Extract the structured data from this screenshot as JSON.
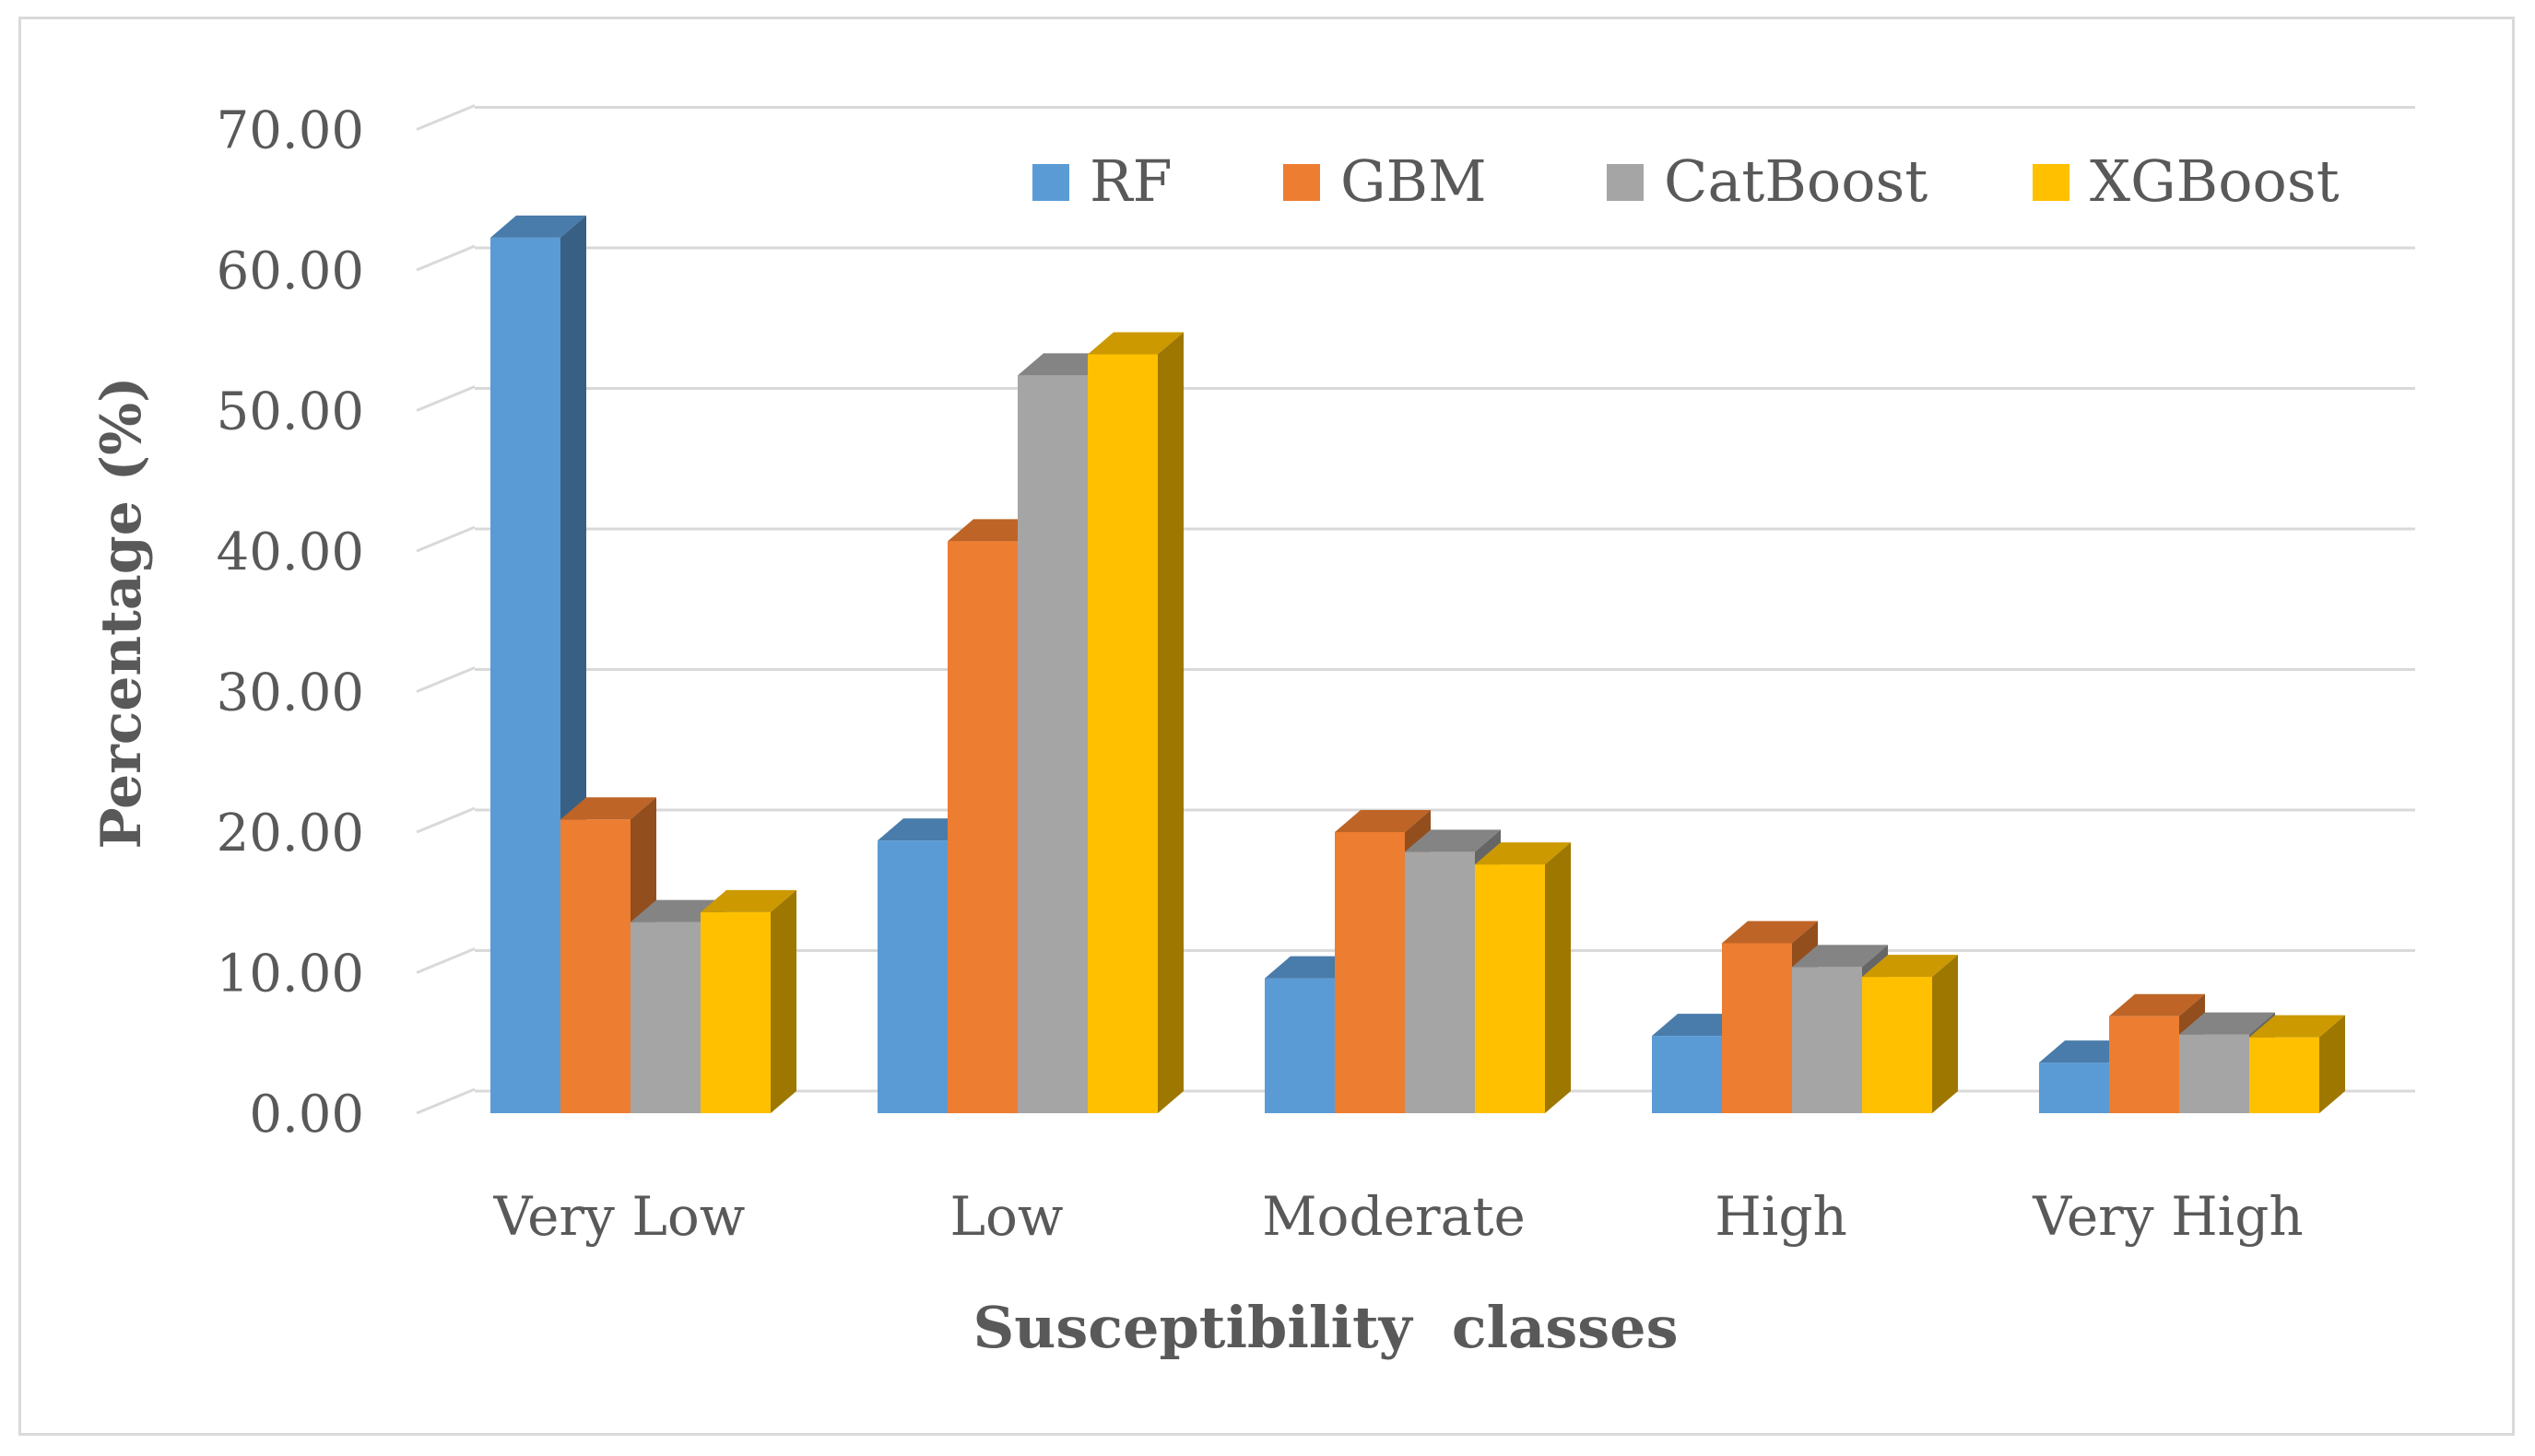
{
  "chart_data": {
    "type": "bar",
    "style": "3d-clustered-column",
    "title": "",
    "xlabel": "Susceptibility  classes",
    "ylabel": "Percentage (%)",
    "ylim": [
      0,
      70
    ],
    "yticks": [
      "0.00",
      "10.00",
      "20.00",
      "30.00",
      "40.00",
      "50.00",
      "60.00",
      "70.00"
    ],
    "grid": true,
    "legend_position": "top-right",
    "categories": [
      "Very Low",
      "Low",
      "Moderate",
      "High",
      "Very High"
    ],
    "series": [
      {
        "name": "RF",
        "color": "#5b9bd5",
        "values": [
          62.3,
          19.4,
          9.6,
          5.5,
          3.6
        ]
      },
      {
        "name": "GBM",
        "color": "#ed7d31",
        "values": [
          20.9,
          40.7,
          20.0,
          12.1,
          6.9
        ]
      },
      {
        "name": "CatBoost",
        "color": "#a5a5a5",
        "values": [
          13.6,
          52.5,
          18.6,
          10.4,
          5.6
        ]
      },
      {
        "name": "XGBoost",
        "color": "#ffc000",
        "values": [
          14.3,
          54.0,
          17.7,
          9.7,
          5.4
        ]
      }
    ]
  }
}
